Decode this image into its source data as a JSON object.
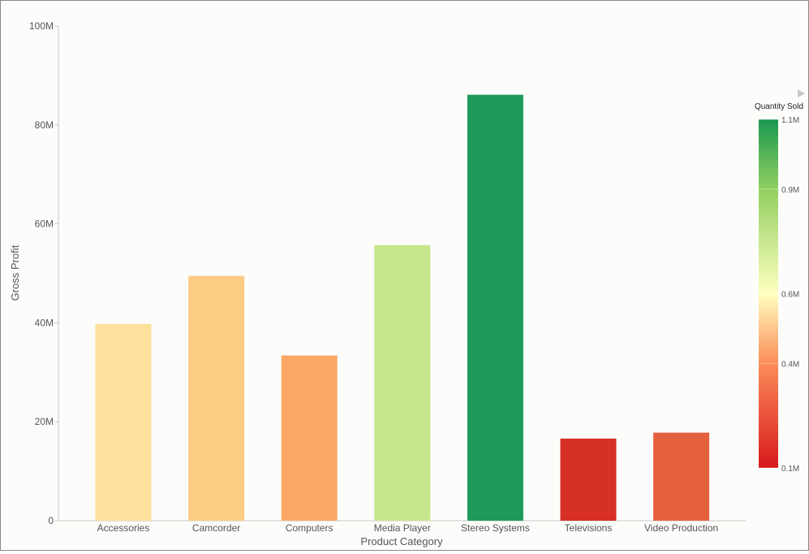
{
  "chart_data": {
    "type": "bar",
    "title": "",
    "xlabel": "Product Category",
    "ylabel": "Gross Profit",
    "ylim": [
      0,
      100000000
    ],
    "y_ticks": [
      0,
      20000000,
      40000000,
      60000000,
      80000000,
      100000000
    ],
    "y_tick_labels": [
      "0",
      "20M",
      "40M",
      "60M",
      "80M",
      "100M"
    ],
    "grid": false,
    "categories": [
      "Accessories",
      "Camcorder",
      "Computers",
      "Media Player",
      "Stereo Systems",
      "Televisions",
      "Video Production"
    ],
    "values": [
      39800000,
      49500000,
      33400000,
      55700000,
      86100000,
      16600000,
      17800000
    ],
    "color_values": [
      0.52,
      0.47,
      0.38,
      0.75,
      1.07,
      0.12,
      0.22
    ],
    "bar_colors": [
      "#fce09c",
      "#fccc84",
      "#fca864",
      "#c6e68c",
      "#1d9a58",
      "#d73027",
      "#e5603c"
    ],
    "color_legend": {
      "title": "Quantity Sold",
      "placement": "right",
      "min": 0.1,
      "max": 1.1,
      "tick_values": [
        1.1,
        0.9,
        0.6,
        0.4,
        0.1
      ],
      "tick_labels": [
        "1.1M",
        "0.9M",
        "0.6M",
        "0.4M",
        "0.1M"
      ],
      "gradient": [
        {
          "value": 1.1,
          "color": "#1a9850"
        },
        {
          "value": 0.9,
          "color": "#91cf60"
        },
        {
          "value": 0.6,
          "color": "#ffffbf"
        },
        {
          "value": 0.4,
          "color": "#fc8d59"
        },
        {
          "value": 0.1,
          "color": "#d7191c"
        }
      ]
    }
  },
  "legend_arrow_icon": "play-triangle-icon"
}
